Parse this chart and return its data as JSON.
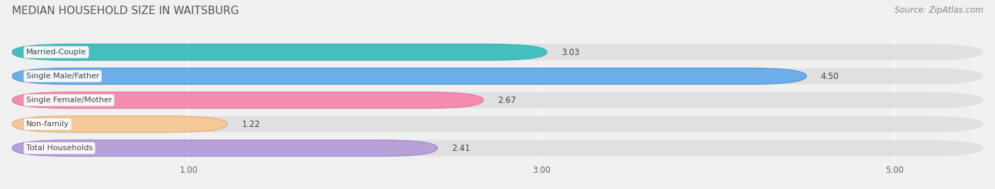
{
  "title": "MEDIAN HOUSEHOLD SIZE IN WAITSBURG",
  "source": "Source: ZipAtlas.com",
  "categories": [
    "Married-Couple",
    "Single Male/Father",
    "Single Female/Mother",
    "Non-family",
    "Total Households"
  ],
  "values": [
    3.03,
    4.5,
    2.67,
    1.22,
    2.41
  ],
  "bar_colors": [
    "#45bfbe",
    "#6baee8",
    "#f48db0",
    "#f5c898",
    "#b8a0d8"
  ],
  "bar_edge_colors": [
    "#3aacac",
    "#4d8fd4",
    "#e0709a",
    "#e0aa70",
    "#9b80c8"
  ],
  "xlim": [
    0.0,
    5.5
  ],
  "xstart": 0.0,
  "xticks": [
    1.0,
    3.0,
    5.0
  ],
  "xtick_labels": [
    "1.00",
    "3.00",
    "5.00"
  ],
  "background_color": "#f0f0f0",
  "bar_bg_color": "#e0e0e0",
  "title_fontsize": 11,
  "source_fontsize": 8.5,
  "label_fontsize": 8,
  "value_fontsize": 8.5
}
